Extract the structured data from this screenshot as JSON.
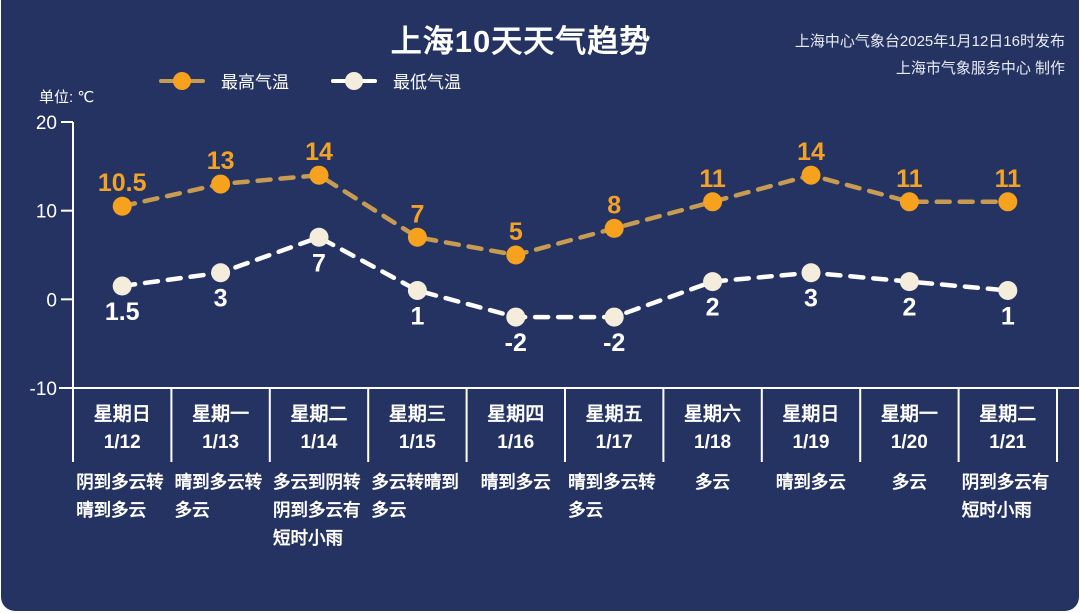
{
  "card": {
    "title": "上海10天天气趋势",
    "publisher_line1": "上海中心气象台2025年1月12日16时发布",
    "publisher_line2": "上海市气象服务中心 制作"
  },
  "legend": [
    {
      "label": "最高气温",
      "marker_color": "#F6A21E",
      "line_color": "#C79B52"
    },
    {
      "label": "最低气温",
      "marker_color": "#F5EDDC",
      "line_color": "#FFFFFF"
    }
  ],
  "colors": {
    "background": "#253363",
    "axis": "#FFFFFF",
    "text": "#FFFFFF",
    "high_accent": "#F6A21E",
    "low_accent": "#F5EDDC"
  },
  "chart_data": {
    "type": "line",
    "title": "上海10天天气趋势",
    "categories": [
      "1/12",
      "1/13",
      "1/14",
      "1/15",
      "1/16",
      "1/17",
      "1/18",
      "1/19",
      "1/20",
      "1/21"
    ],
    "categories_weekday": [
      "星期日",
      "星期一",
      "星期二",
      "星期三",
      "星期四",
      "星期五",
      "星期六",
      "星期日",
      "星期一",
      "星期二"
    ],
    "series": [
      {
        "name": "最高气温",
        "values": [
          10.5,
          13,
          14,
          7,
          5,
          8,
          11,
          14,
          11,
          11
        ],
        "marker_color": "#F6A21E",
        "line_color": "#C79B52",
        "label_color": "#F2A227",
        "label_position": "above"
      },
      {
        "name": "最低气温",
        "values": [
          1.5,
          3,
          7,
          1,
          -2,
          -2,
          2,
          3,
          2,
          1
        ],
        "marker_color": "#F5EDDC",
        "line_color": "#FFFFFF",
        "label_color": "#FFFFFF",
        "label_position": "below"
      }
    ],
    "ylabel": "单位: ℃",
    "yticks": [
      20,
      10,
      0,
      -10
    ],
    "ylim": [
      -10,
      20
    ],
    "grid": false,
    "line_style": "dashed",
    "legend_position": "top-left"
  },
  "forecast": [
    {
      "day": "星期日",
      "date": "1/12",
      "weather": "阴到多云转晴到多云"
    },
    {
      "day": "星期一",
      "date": "1/13",
      "weather": "晴到多云转多云"
    },
    {
      "day": "星期二",
      "date": "1/14",
      "weather": "多云到阴转阴到多云有短时小雨"
    },
    {
      "day": "星期三",
      "date": "1/15",
      "weather": "多云转晴到多云"
    },
    {
      "day": "星期四",
      "date": "1/16",
      "weather": "晴到多云"
    },
    {
      "day": "星期五",
      "date": "1/17",
      "weather": "晴到多云转多云"
    },
    {
      "day": "星期六",
      "date": "1/18",
      "weather": "多云"
    },
    {
      "day": "星期日",
      "date": "1/19",
      "weather": "晴到多云"
    },
    {
      "day": "星期一",
      "date": "1/20",
      "weather": "多云"
    },
    {
      "day": "星期二",
      "date": "1/21",
      "weather": "阴到多云有短时小雨"
    }
  ]
}
